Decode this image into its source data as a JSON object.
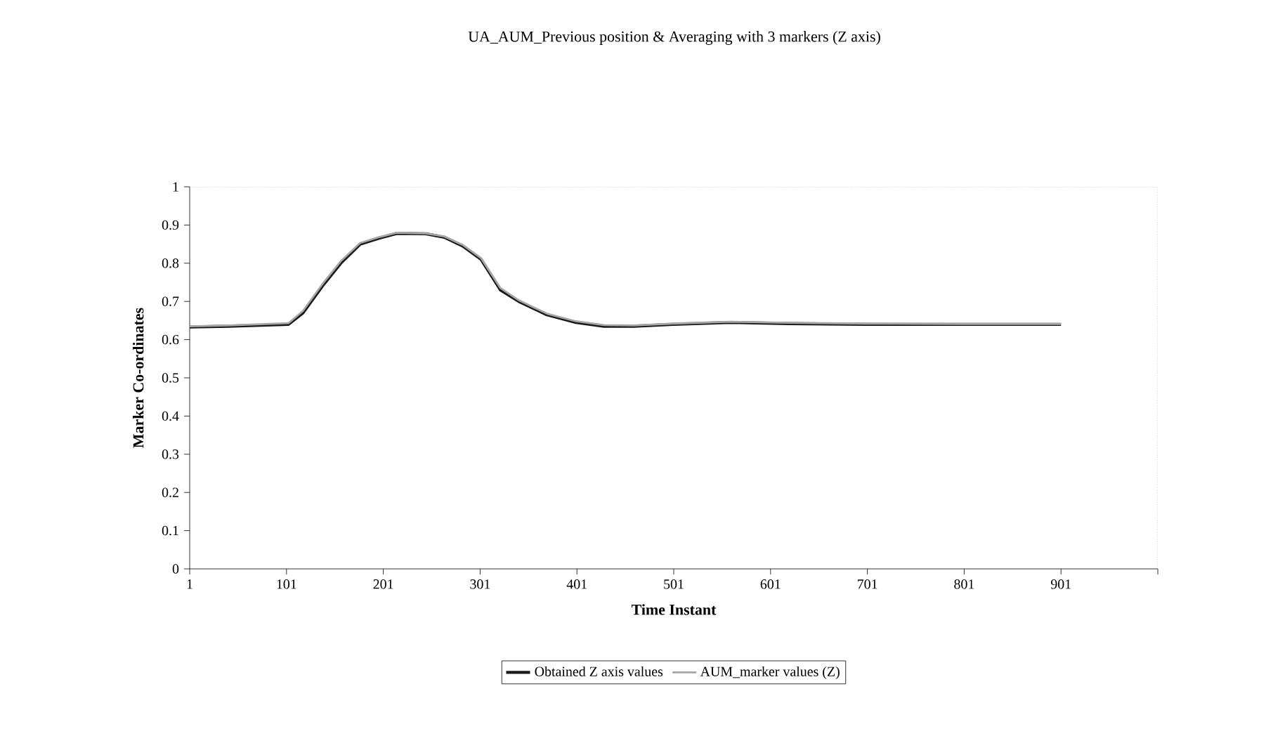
{
  "chart_data": {
    "type": "line",
    "title": "UA_AUM_Previous position & Averaging with 3 markers (Z axis)",
    "xlabel": "Time Instant",
    "ylabel": "Marker Co-ordinates",
    "xlim": [
      1,
      1001
    ],
    "xticks": [
      1,
      101,
      201,
      301,
      401,
      501,
      601,
      701,
      801,
      901,
      {
        "value": 1001,
        "label": null
      }
    ],
    "ylim": [
      0,
      1
    ],
    "yticks": [
      0,
      0.1,
      0.2,
      0.3,
      0.4,
      0.5,
      0.6,
      0.7,
      0.8,
      0.9,
      1
    ],
    "legend": "bottom",
    "grid": false,
    "marker": "none",
    "line_style": "solid",
    "series": [
      {
        "name": "Obtained Z axis values",
        "color": "#1a1a1a",
        "x": [
          1,
          41,
          103,
          118,
          138,
          157,
          177,
          196,
          215,
          245,
          264,
          283,
          302,
          322,
          341,
          370,
          400,
          429,
          460,
          500,
          560,
          620,
          700,
          800,
          901
        ],
        "values": [
          0.633,
          0.635,
          0.64,
          0.67,
          0.74,
          0.8,
          0.85,
          0.865,
          0.878,
          0.877,
          0.868,
          0.845,
          0.81,
          0.73,
          0.7,
          0.665,
          0.645,
          0.635,
          0.635,
          0.64,
          0.645,
          0.642,
          0.64,
          0.64,
          0.64
        ]
      },
      {
        "name": "AUM_marker values (Z)",
        "color": "#a6a6a6",
        "x": [
          1,
          41,
          103,
          118,
          138,
          157,
          177,
          196,
          215,
          245,
          264,
          283,
          302,
          322,
          341,
          370,
          400,
          429,
          460,
          500,
          560,
          620,
          700,
          800,
          901
        ],
        "values": [
          0.635,
          0.637,
          0.643,
          0.675,
          0.745,
          0.805,
          0.853,
          0.868,
          0.88,
          0.878,
          0.87,
          0.848,
          0.813,
          0.735,
          0.703,
          0.668,
          0.648,
          0.638,
          0.637,
          0.642,
          0.647,
          0.644,
          0.642,
          0.641,
          0.641
        ]
      }
    ]
  }
}
